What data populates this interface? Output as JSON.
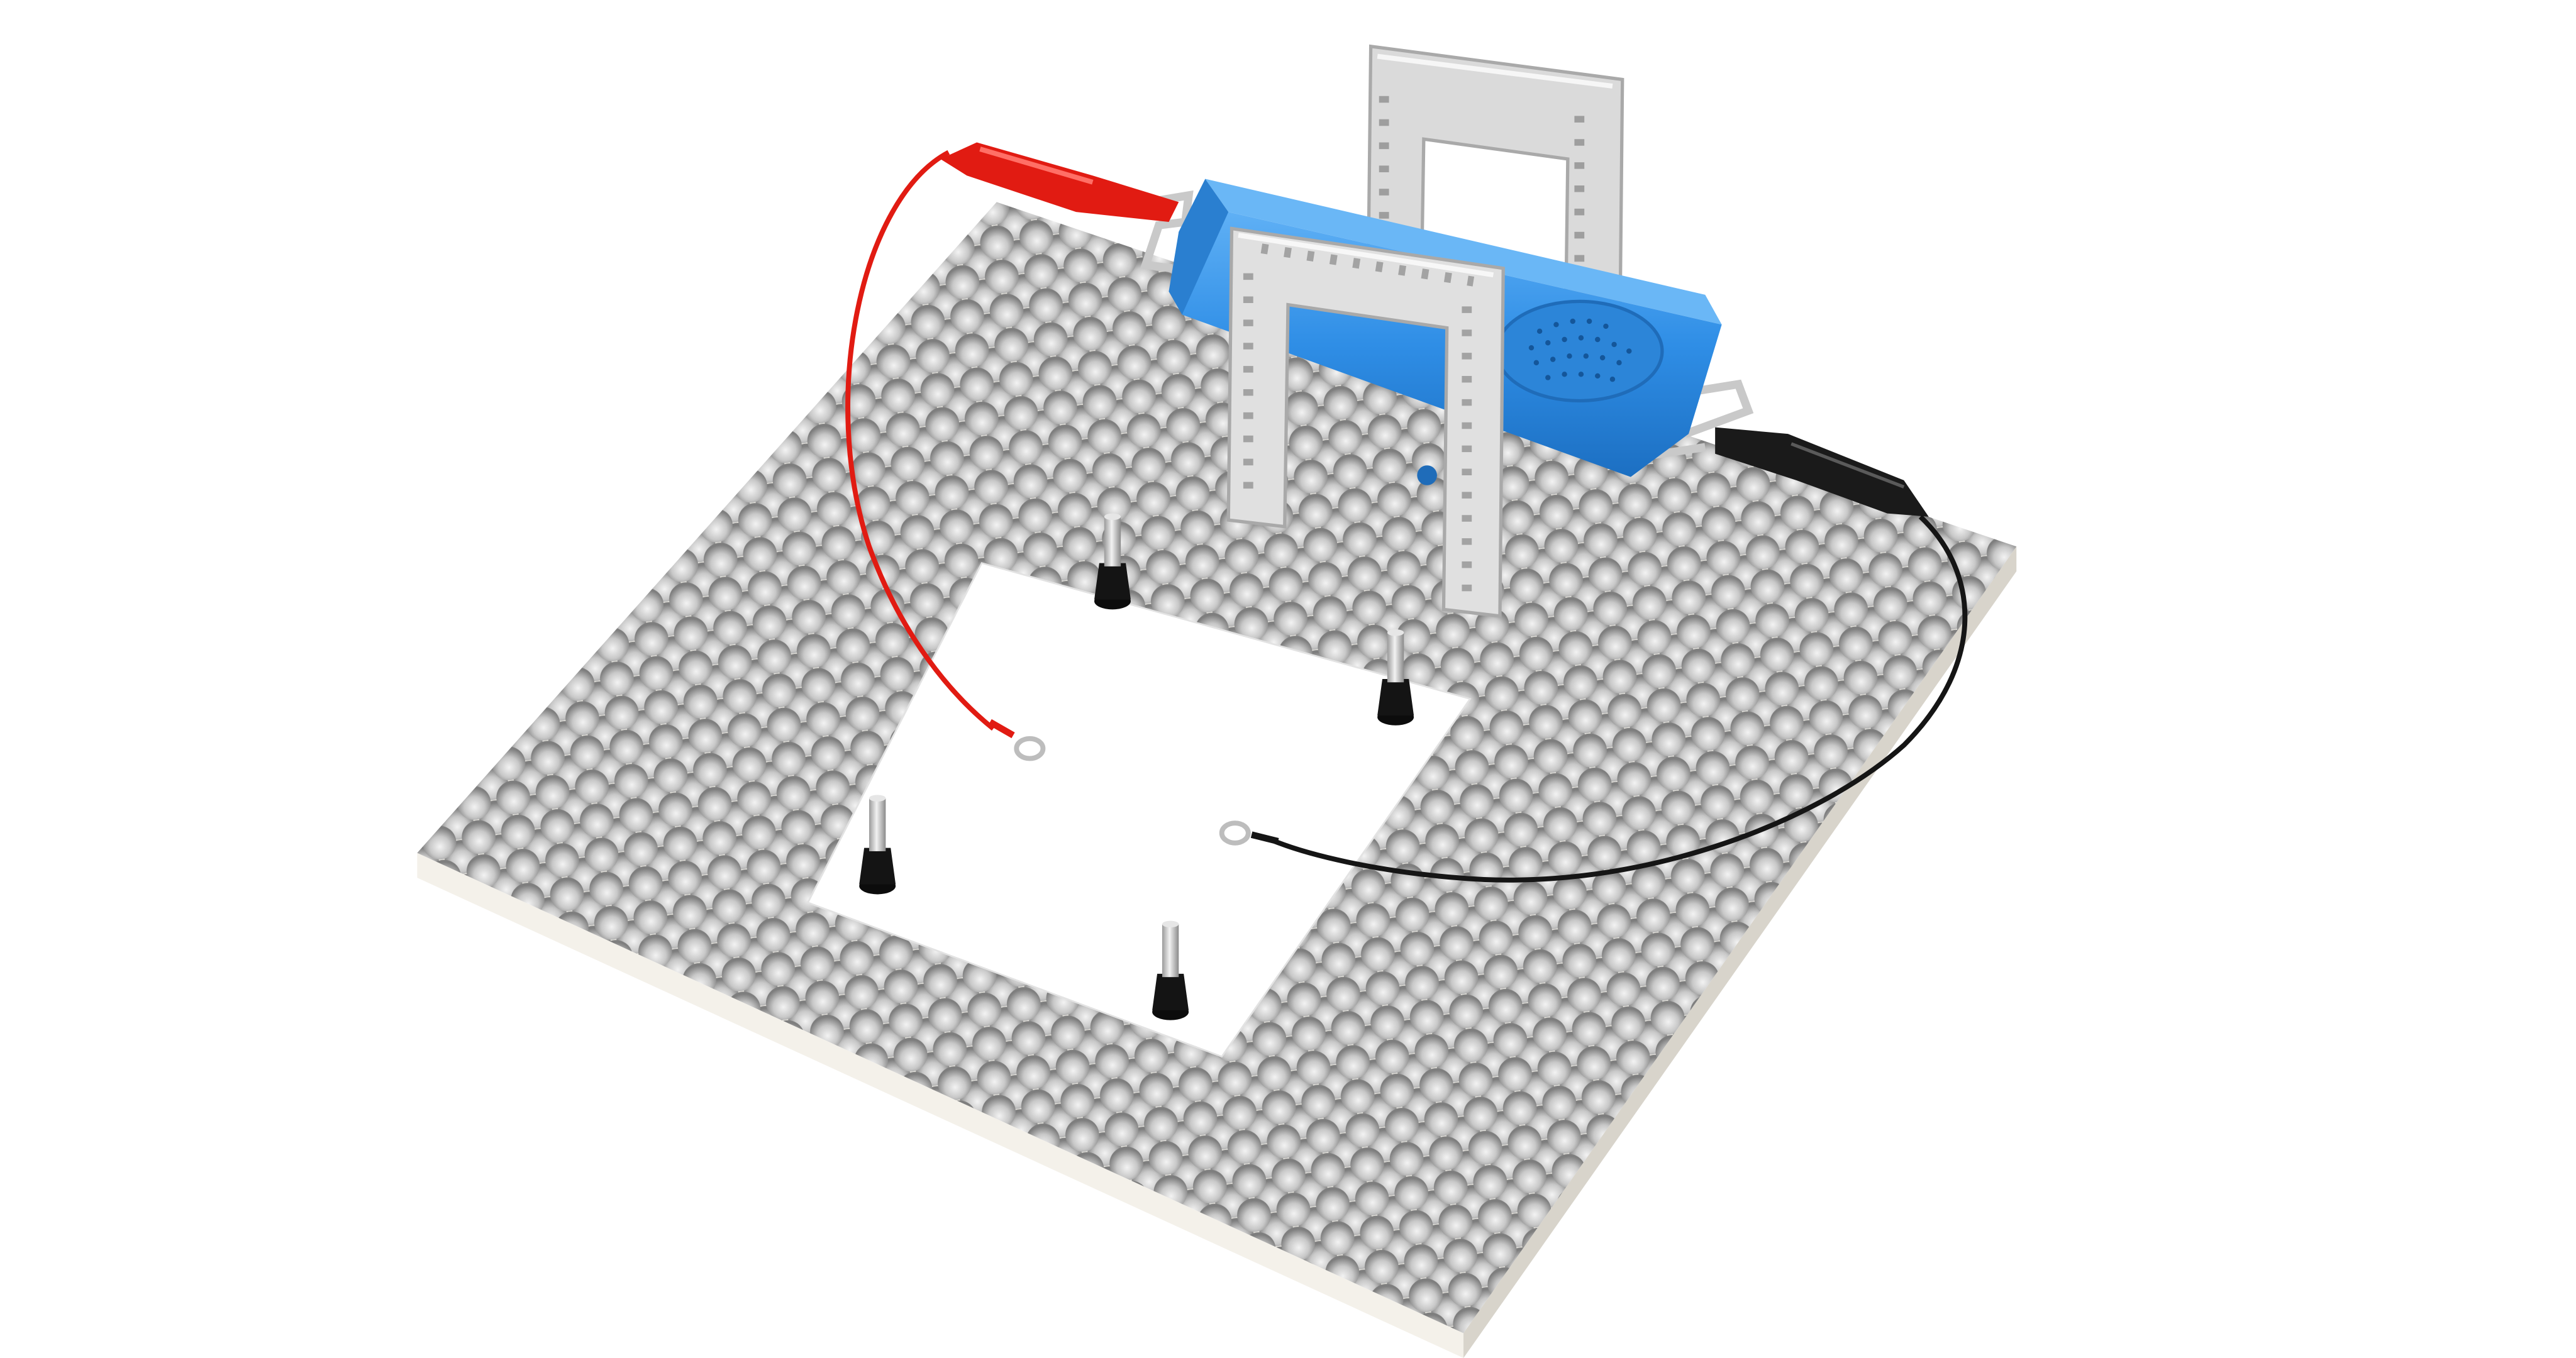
{
  "scene": {
    "subject": "lego-style-circuit-kit-on-honeycomb-pegboard",
    "background_color": "#ffffff",
    "colors": {
      "board_top": "#ece9e2",
      "board_edge_front": "#f4f1ea",
      "board_edge_side": "#dcd8cf",
      "cell_shadow": "#8c8c8c",
      "cell_mid": "#c7c7c7",
      "cell_light": "#f3f3f3",
      "paper": "#ffffff",
      "module_blue": "#2f8ee6",
      "module_blue_dark": "#1c6fc2",
      "module_blue_light": "#5fb0f5",
      "frame_grey": "#dedede",
      "frame_grey_dark": "#b5b5b5",
      "red_wire": "#e11b12",
      "black_wire": "#151515",
      "peg_metal": "#c9c9c9",
      "peg_base": "#141414"
    },
    "icons": [
      "speaker-grille-icon"
    ]
  }
}
